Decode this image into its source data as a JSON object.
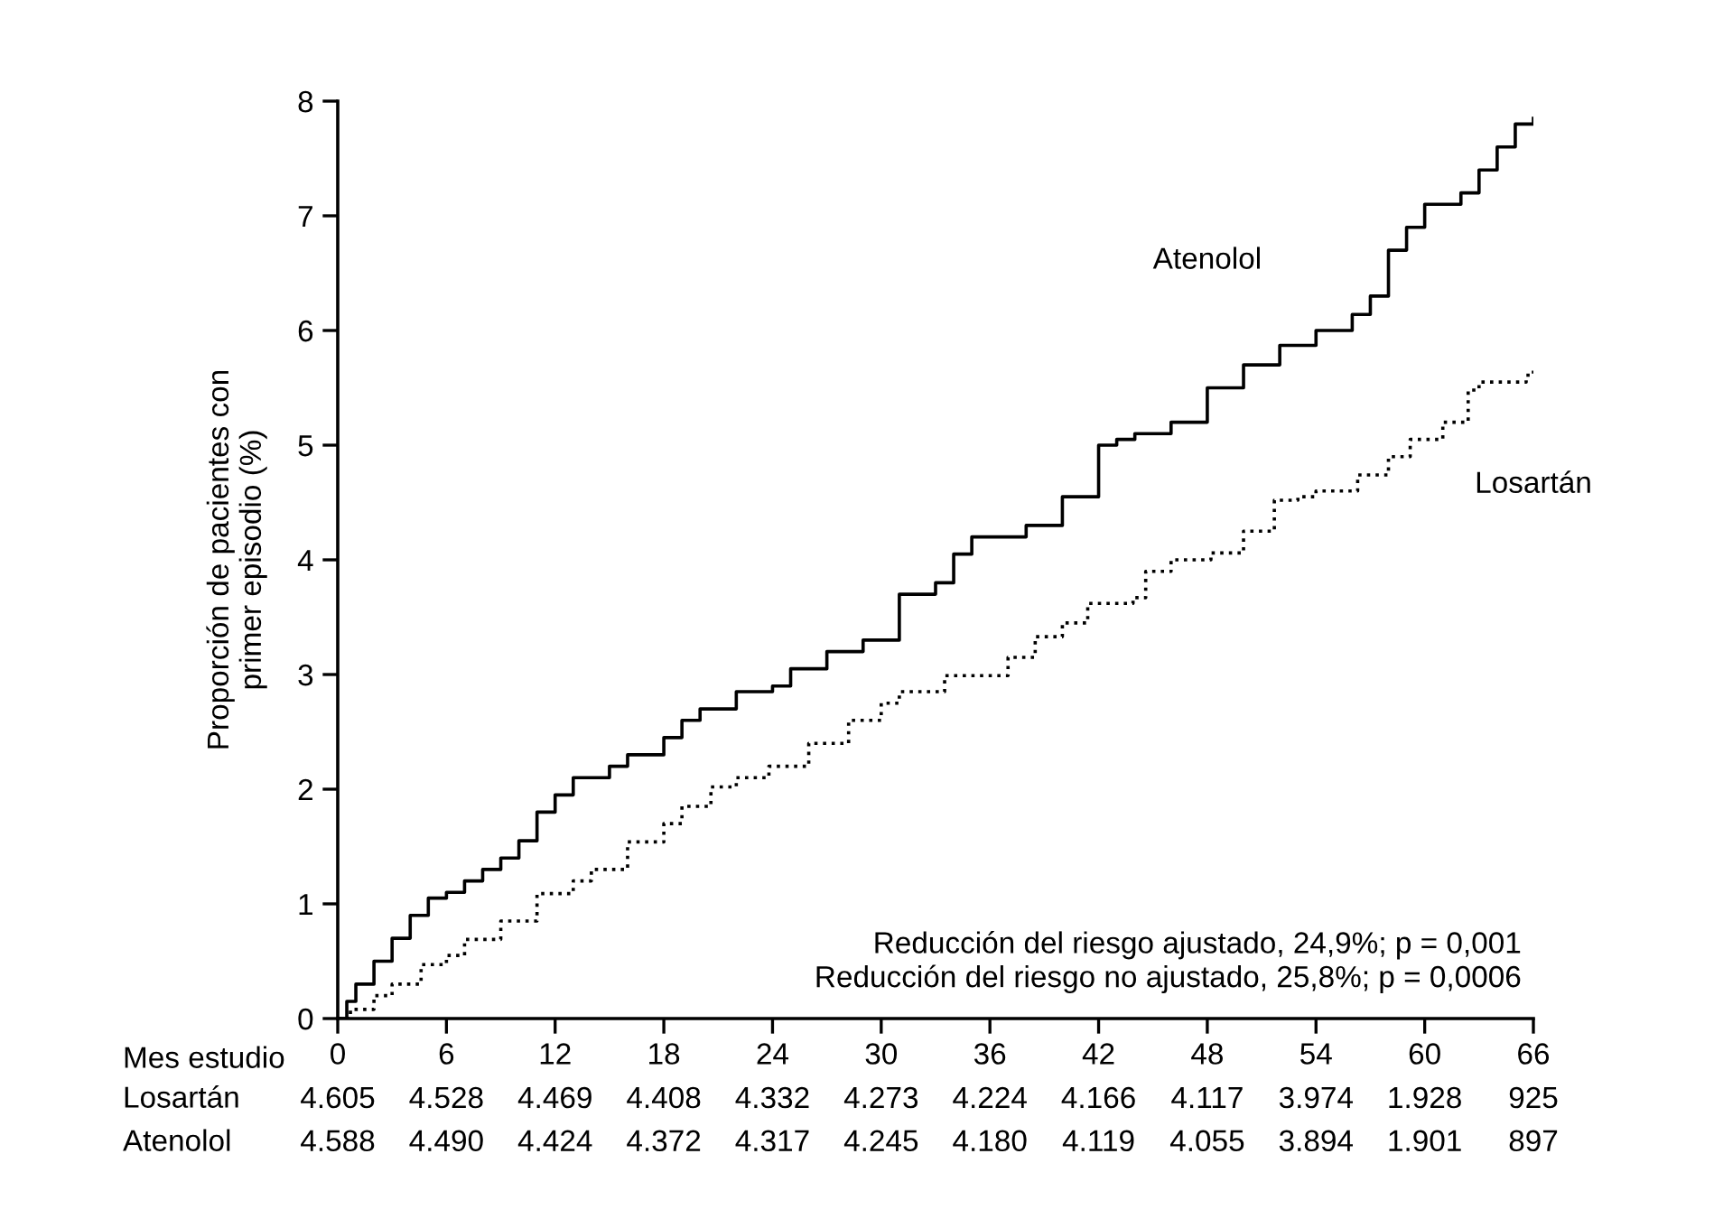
{
  "chart_data": {
    "type": "step",
    "ylabel": "Proporción de pacientes con\nprimer episodio (%)",
    "xlabel": "Mes estudio",
    "xlim": [
      0,
      66
    ],
    "xticks": [
      0,
      6,
      12,
      18,
      24,
      30,
      36,
      42,
      48,
      54,
      60,
      66
    ],
    "ylim": [
      0,
      8
    ],
    "yticks": [
      0,
      1,
      2,
      3,
      4,
      5,
      6,
      7,
      8
    ],
    "grid": false,
    "legend": false,
    "series": [
      {
        "name": "Atenolol",
        "color": "#000000",
        "line_style": "solid",
        "x": [
          0,
          0.5,
          1,
          2,
          3,
          4,
          5,
          6,
          7,
          8,
          9,
          10,
          11,
          12,
          13,
          15,
          16,
          18,
          19,
          20,
          22,
          24,
          25,
          27,
          29,
          31,
          33,
          34,
          35,
          38,
          40,
          42,
          43,
          44,
          46,
          48,
          50,
          52,
          54,
          56,
          57,
          58,
          59,
          60,
          62,
          63,
          64,
          65,
          66
        ],
        "values": [
          0,
          0.15,
          0.3,
          0.5,
          0.7,
          0.9,
          1.05,
          1.1,
          1.2,
          1.3,
          1.4,
          1.55,
          1.8,
          1.95,
          2.1,
          2.2,
          2.3,
          2.45,
          2.6,
          2.7,
          2.85,
          2.9,
          3.05,
          3.2,
          3.3,
          3.7,
          3.8,
          4.05,
          4.2,
          4.3,
          4.55,
          5.0,
          5.05,
          5.1,
          5.2,
          5.5,
          5.7,
          5.87,
          6.0,
          6.14,
          6.3,
          6.7,
          6.9,
          7.1,
          7.2,
          7.4,
          7.6,
          7.8,
          7.85
        ]
      },
      {
        "name": "Losartán",
        "color": "#000000",
        "line_style": "dotted",
        "x": [
          0,
          0.7,
          2,
          3,
          4.6,
          6,
          7,
          9,
          11,
          13,
          14,
          16,
          18,
          19,
          20.6,
          22,
          23.8,
          26,
          28.2,
          30,
          31,
          33.5,
          35.9,
          37,
          38.5,
          40,
          41.4,
          43.9,
          44.6,
          46,
          48.2,
          50,
          51.7,
          53,
          54,
          56.3,
          58,
          59.2,
          61,
          62.4,
          63,
          65.6,
          66
        ],
        "values": [
          0,
          0.08,
          0.2,
          0.3,
          0.47,
          0.55,
          0.69,
          0.85,
          1.09,
          1.2,
          1.3,
          1.54,
          1.7,
          1.85,
          2.02,
          2.1,
          2.2,
          2.4,
          2.6,
          2.75,
          2.85,
          2.99,
          2.99,
          3.15,
          3.33,
          3.45,
          3.62,
          3.67,
          3.9,
          4.0,
          4.06,
          4.25,
          4.52,
          4.55,
          4.6,
          4.74,
          4.9,
          5.05,
          5.2,
          5.48,
          5.55,
          5.61,
          5.65
        ]
      }
    ],
    "annotations": [
      "Reducción del riesgo ajustado, 24,9%; p = 0,001",
      "Reducción del riesgo no ajustado, 25,8%; p = 0,0006",
      "Losartán 4.605 4.528 4.469 4.408 4.332 4.273 4.224 4.166 4.117 3.974 1.928 925",
      "Atenolol 4.588 4.490 4.424 4.372 4.317 4.245 4.180 4.119 4.055 3.894 1.901 897"
    ]
  }
}
